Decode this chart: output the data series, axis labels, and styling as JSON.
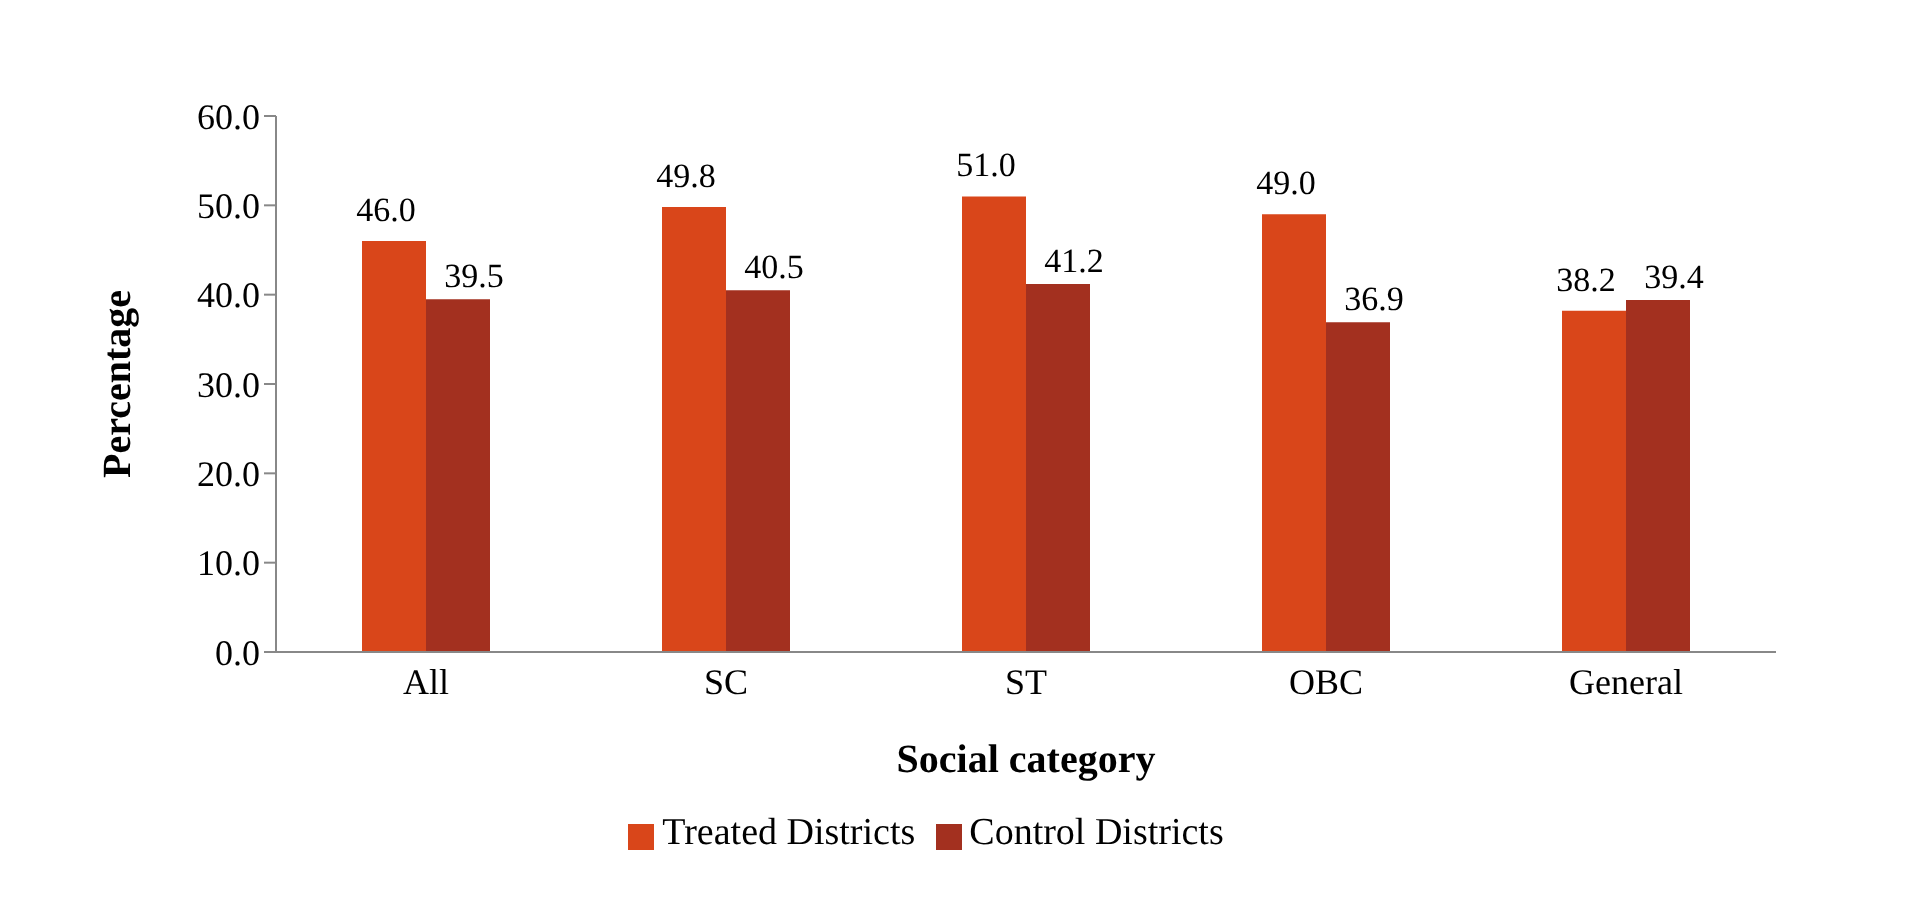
{
  "chart_data": {
    "type": "bar",
    "xlabel": "Social category",
    "ylabel": "Percentage",
    "categories": [
      "All",
      "SC",
      "ST",
      "OBC",
      "General"
    ],
    "series": [
      {
        "name": "Treated Districts",
        "color": "#d9461a",
        "values": [
          46.0,
          49.8,
          51.0,
          49.0,
          38.2
        ],
        "value_labels": [
          "46.0",
          "49.8",
          "51.0",
          "49.0",
          "38.2"
        ]
      },
      {
        "name": "Control Districts",
        "color": "#a3301f",
        "values": [
          39.5,
          40.5,
          41.2,
          36.9,
          39.4
        ],
        "value_labels": [
          "39.5",
          "40.5",
          "41.2",
          "36.9",
          "39.4"
        ]
      }
    ],
    "ylim": [
      0,
      60
    ],
    "yticks": [
      {
        "value": 0,
        "label": "0.0"
      },
      {
        "value": 10,
        "label": "10.0"
      },
      {
        "value": 20,
        "label": "20.0"
      },
      {
        "value": 30,
        "label": "30.0"
      },
      {
        "value": 40,
        "label": "40.0"
      },
      {
        "value": 50,
        "label": "50.0"
      },
      {
        "value": 60,
        "label": "60.0"
      }
    ],
    "grid": false,
    "legend": "bottom"
  }
}
